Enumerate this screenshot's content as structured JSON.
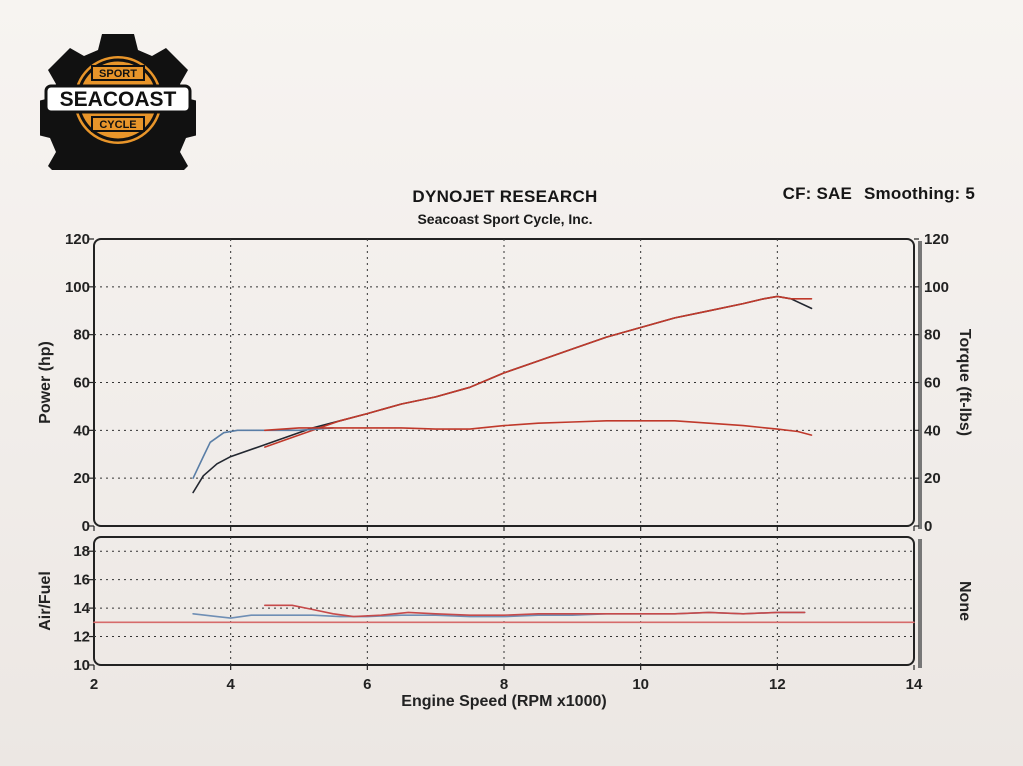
{
  "header": {
    "title": "DYNOJET RESEARCH",
    "subtitle": "Seacoast Sport Cycle, Inc.",
    "cf_label": "CF: SAE",
    "smoothing_label": "Smoothing: 5"
  },
  "logo": {
    "top": "SPORT",
    "middle": "SEACOAST",
    "bottom": "CYCLE"
  },
  "colors": {
    "run_red": "#c0392b",
    "run_dark": "#222730",
    "run_blue": "#5a7ea6",
    "afr_red": "#c64a4a",
    "afr_blue": "#6f8fb5",
    "grid": "#333333",
    "logo_orange": "#e8952a",
    "logo_black": "#111111"
  },
  "chart_data": [
    {
      "type": "line",
      "name": "power-torque",
      "ylabel": "Power (hp)",
      "y2label": "Torque (ft-lbs)",
      "xlim": [
        2,
        14
      ],
      "ylim": [
        0,
        120
      ],
      "y2lim": [
        0,
        120
      ],
      "x_ticks": [
        "2",
        "4",
        "6",
        "8",
        "10",
        "12",
        "14"
      ],
      "y_ticks": [
        "0",
        "20",
        "40",
        "60",
        "80",
        "100",
        "120"
      ],
      "y2_ticks": [
        "0",
        "20",
        "40",
        "60",
        "80",
        "100",
        "120"
      ],
      "grid": true,
      "series": [
        {
          "color": "#222730",
          "x": [
            3.45,
            3.6,
            3.8,
            4.0,
            4.4,
            4.8,
            5.2,
            5.6,
            6.0,
            6.5,
            7.0,
            7.5,
            8.0,
            8.5,
            9.0,
            9.5,
            10.0,
            10.5,
            11.0,
            11.5,
            11.8,
            12.0,
            12.2,
            12.5
          ],
          "y": [
            14,
            21,
            26,
            29,
            33,
            37,
            41,
            44,
            47,
            51,
            54,
            58,
            64,
            69,
            74,
            79,
            83,
            87,
            90,
            93,
            95,
            96,
            95,
            91
          ]
        },
        {
          "color": "#c0392b",
          "x": [
            4.5,
            4.8,
            5.2,
            5.6,
            6.0,
            6.5,
            7.0,
            7.5,
            8.0,
            8.5,
            9.0,
            9.5,
            10.0,
            10.5,
            11.0,
            11.5,
            11.8,
            12.0,
            12.2,
            12.5
          ],
          "y": [
            33,
            36,
            40,
            44,
            47,
            51,
            54,
            58,
            64,
            69,
            74,
            79,
            83,
            87,
            90,
            93,
            95,
            96,
            95,
            95
          ]
        },
        {
          "color": "#5a7ea6",
          "x": [
            3.45,
            3.6,
            3.7,
            3.9,
            4.1,
            4.5,
            5.0,
            5.5
          ],
          "y": [
            20,
            29,
            35,
            39,
            40,
            40,
            40,
            41
          ]
        },
        {
          "color": "#c0392b",
          "x": [
            4.5,
            5.0,
            5.5,
            6.0,
            6.5,
            7.0,
            7.5,
            8.0,
            8.5,
            9.0,
            9.5,
            10.0,
            10.5,
            11.0,
            11.5,
            12.0,
            12.3,
            12.5
          ],
          "y": [
            40,
            41,
            41,
            41,
            41,
            40.5,
            40.5,
            42,
            43,
            43.5,
            44,
            44,
            44,
            43,
            42,
            40.5,
            39.5,
            38
          ]
        }
      ]
    },
    {
      "type": "line",
      "name": "air-fuel",
      "ylabel": "Air/Fuel",
      "y2label": "None",
      "xlabel": "Engine Speed (RPM x1000)",
      "xlim": [
        2,
        14
      ],
      "ylim": [
        10,
        19
      ],
      "x_ticks": [
        "2",
        "4",
        "6",
        "8",
        "10",
        "12",
        "14"
      ],
      "y_ticks": [
        "10",
        "12",
        "14",
        "16",
        "18"
      ],
      "grid": true,
      "series": [
        {
          "color": "#6f8fb5",
          "x": [
            3.45,
            3.8,
            4.0,
            4.3,
            4.8,
            5.2,
            5.6,
            6.0,
            6.5,
            7.0,
            7.5,
            8.0,
            8.5,
            9.0,
            9.5,
            10.0,
            10.5,
            11.0,
            11.5,
            12.0,
            12.4
          ],
          "y": [
            13.6,
            13.4,
            13.3,
            13.5,
            13.5,
            13.5,
            13.4,
            13.4,
            13.5,
            13.5,
            13.4,
            13.4,
            13.5,
            13.5,
            13.6,
            13.6,
            13.6,
            13.7,
            13.6,
            13.7,
            13.7
          ]
        },
        {
          "color": "#c64a4a",
          "x": [
            4.5,
            4.9,
            5.2,
            5.5,
            5.8,
            6.2,
            6.6,
            7.0,
            7.5,
            8.0,
            8.5,
            9.0,
            9.5,
            10.0,
            10.5,
            11.0,
            11.5,
            12.0,
            12.4
          ],
          "y": [
            14.2,
            14.2,
            13.9,
            13.6,
            13.4,
            13.5,
            13.7,
            13.6,
            13.5,
            13.5,
            13.6,
            13.6,
            13.6,
            13.6,
            13.6,
            13.7,
            13.6,
            13.7,
            13.7
          ]
        },
        {
          "color": "#d66b6b",
          "x": [
            2,
            14
          ],
          "y": [
            13,
            13
          ]
        }
      ]
    }
  ]
}
